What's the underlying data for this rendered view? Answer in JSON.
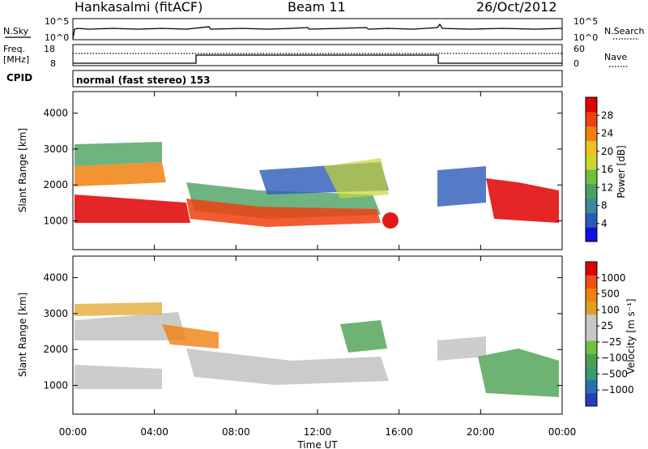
{
  "header": {
    "station": "Hankasalmi (fitACF)",
    "beam": "Beam 11",
    "date": "26/Oct/2012"
  },
  "strip_labels": {
    "nsky": "N.Sky",
    "nsearch": "N.Search",
    "nsky_ticks": [
      "10^5",
      "10^0"
    ],
    "freq_line1": "Freq.",
    "freq_line2": "[MHz]",
    "freq_ticks": [
      "18",
      "8"
    ],
    "nave": "Nave",
    "nave_ticks": [
      "60",
      "0"
    ],
    "cpid": "CPID",
    "mode": "normal (fast stereo) 153"
  },
  "chart_data": [
    {
      "type": "heatmap",
      "name": "Power",
      "ylabel": "Slant Range [km]",
      "xlabel": "Time UT",
      "x_ticks": [
        "00:00",
        "04:00",
        "08:00",
        "12:00",
        "16:00",
        "20:00",
        "00:00"
      ],
      "y_ticks": [
        1000,
        2000,
        3000,
        4000
      ],
      "ylim": [
        200,
        4600
      ],
      "colorbar": {
        "label": "Power [dB]",
        "ticks": [
          4,
          8,
          12,
          16,
          20,
          24,
          28
        ],
        "colors": [
          "#1010e0",
          "#2a5ab8",
          "#3a8aa0",
          "#4aa060",
          "#70c040",
          "#c8d830",
          "#f0c020",
          "#f08010",
          "#f04010",
          "#e00000"
        ]
      }
    },
    {
      "type": "heatmap",
      "name": "Velocity",
      "ylabel": "Slant Range [km]",
      "xlabel": "Time UT",
      "x_ticks": [
        "00:00",
        "04:00",
        "08:00",
        "12:00",
        "16:00",
        "20:00",
        "00:00"
      ],
      "y_ticks": [
        1000,
        2000,
        3000,
        4000
      ],
      "ylim": [
        200,
        4600
      ],
      "colorbar": {
        "label": "Velocity [m s⁻¹]",
        "ticks": [
          "1000",
          "500",
          "100",
          "25",
          "−25",
          "−100",
          "−500",
          "−1000"
        ],
        "colors": [
          "#2040c0",
          "#2a70b0",
          "#3a9a70",
          "#4aa050",
          "#70c040",
          "#c8c8c8",
          "#c8c8c8",
          "#e0a020",
          "#f08010",
          "#f05010",
          "#e00000"
        ]
      }
    }
  ],
  "x_axis_title": "Time UT"
}
